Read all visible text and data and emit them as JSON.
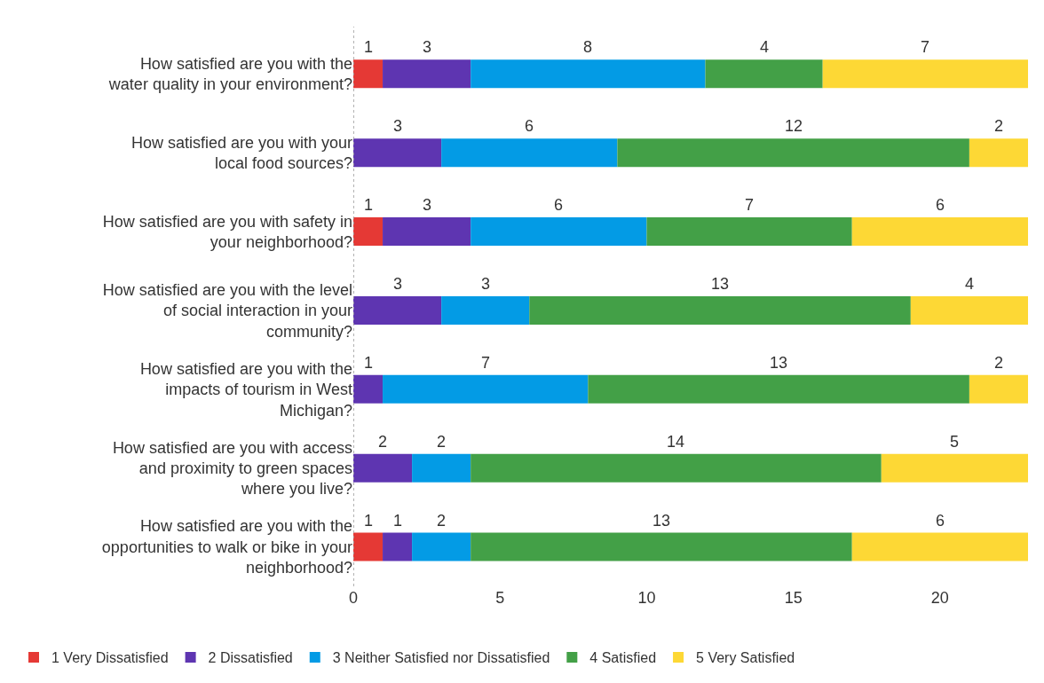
{
  "chart_data": {
    "type": "bar",
    "orientation": "horizontal",
    "stacked": true,
    "data_labels": true,
    "legend": "bottom",
    "grid": false,
    "categories": [
      "How satisfied are you with the\nwater quality in your environment?",
      "How satisfied are you with your\nlocal food sources?",
      "How satisfied are you with safety in\nyour neighborhood?",
      "How satisfied are you with the level\nof social interaction in your\ncommunity?",
      "How satisfied are you with the\nimpacts of tourism in West\nMichigan?",
      "How satisfied are you with access\nand proximity to green spaces\nwhere you live?",
      "How satisfied are you with the\nopportunities to walk or bike in your\nneighborhood?"
    ],
    "xlim": [
      0,
      23
    ],
    "xticks": [
      0,
      5,
      10,
      15,
      20
    ],
    "series": [
      {
        "name": "1 Very Dissatisfied",
        "color": "#e53935",
        "values": [
          1,
          null,
          1,
          null,
          null,
          null,
          1
        ]
      },
      {
        "name": "2 Dissatisfied",
        "color": "#5e35b1",
        "values": [
          3,
          3,
          3,
          3,
          1,
          2,
          1
        ]
      },
      {
        "name": "3 Neither Satisfied nor Dissatisfied",
        "color": "#039be5",
        "values": [
          8,
          6,
          6,
          3,
          7,
          2,
          2
        ]
      },
      {
        "name": "4 Satisfied",
        "color": "#43a047",
        "values": [
          4,
          12,
          7,
          13,
          13,
          14,
          13
        ]
      },
      {
        "name": "5 Very Satisfied",
        "color": "#fdd835",
        "values": [
          7,
          2,
          6,
          4,
          2,
          5,
          6
        ]
      }
    ]
  }
}
